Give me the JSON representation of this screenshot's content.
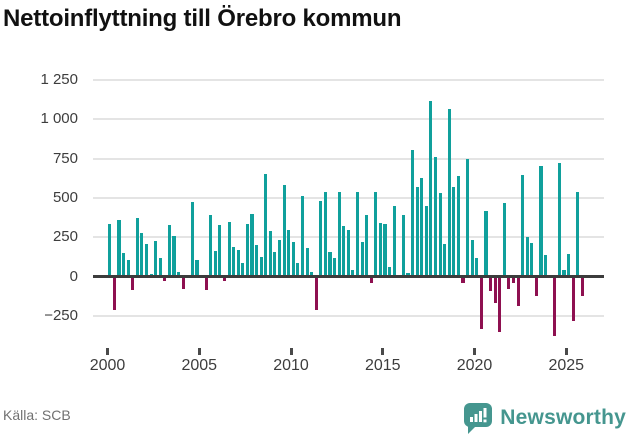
{
  "title": "Nettoinflyttning till Örebro kommun",
  "footer": {
    "source": "Källa: SCB",
    "brand": "Newsworthy"
  },
  "colors": {
    "positive": "#10a09c",
    "negative": "#8e1050",
    "gridline": "#e4e4e4",
    "zero_line": "#3c3c3c",
    "axis_text": "#3d3d3d",
    "brand_teal": "#45968f"
  },
  "chart_data": {
    "type": "bar",
    "title": "Nettoinflyttning till Örebro kommun",
    "x_unit": "quarter",
    "start": "2000-Q1",
    "end": "2025-Q4",
    "x_tick_years": [
      2000,
      2005,
      2010,
      2015,
      2020,
      2025
    ],
    "x_tick_labels": [
      "2000",
      "2005",
      "2010",
      "2015",
      "2020",
      "2025"
    ],
    "y_ticks": [
      1250,
      1000,
      750,
      500,
      250,
      0,
      -250
    ],
    "y_tick_labels": [
      "1 250",
      "1 000",
      "750",
      "500",
      "250",
      "0",
      "−250"
    ],
    "ylim": [
      -450,
      1300
    ],
    "grid": true,
    "legend": false,
    "series": [
      {
        "name": "Nettoinflyttning",
        "values": [
          335,
          -210,
          360,
          150,
          105,
          -85,
          370,
          275,
          210,
          15,
          225,
          120,
          -30,
          325,
          255,
          30,
          -80,
          0,
          475,
          105,
          0,
          -85,
          390,
          160,
          330,
          -30,
          350,
          190,
          170,
          85,
          335,
          400,
          200,
          125,
          655,
          290,
          155,
          230,
          580,
          295,
          220,
          85,
          515,
          180,
          30,
          -212,
          480,
          540,
          155,
          115,
          535,
          320,
          295,
          40,
          535,
          220,
          390,
          -40,
          535,
          340,
          335,
          60,
          450,
          10,
          390,
          25,
          805,
          570,
          625,
          450,
          1115,
          760,
          530,
          210,
          1065,
          570,
          640,
          -40,
          745,
          230,
          115,
          -335,
          420,
          -90,
          -170,
          -350,
          465,
          -80,
          -40,
          -190,
          645,
          250,
          215,
          -125,
          705,
          135,
          0,
          -380,
          725,
          40,
          145,
          -285,
          535,
          -125
        ]
      }
    ]
  }
}
